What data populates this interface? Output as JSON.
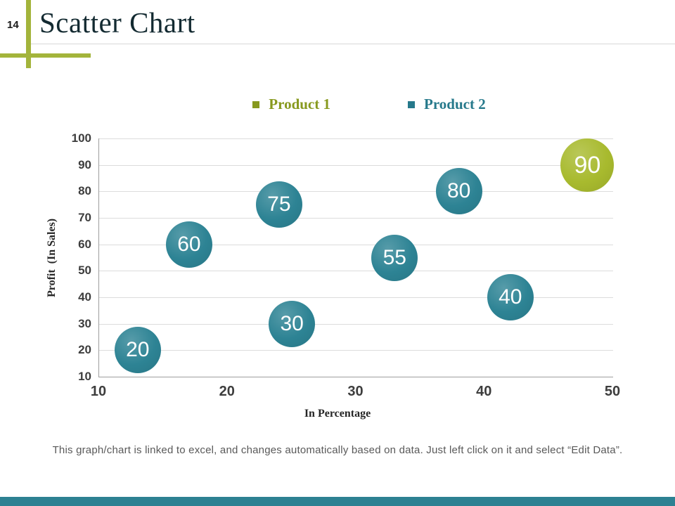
{
  "slide": {
    "page_number": "14",
    "title": "Scatter Chart",
    "footer": "This graph/chart is linked to excel, and changes automatically based on data. Just left click on it and select “Edit Data”."
  },
  "theme": {
    "olive": "#a3b43b",
    "teal": "#2d8192",
    "title_color": "#132a31",
    "footer_color": "#595959"
  },
  "legend": [
    {
      "label": "Product 1",
      "color": "#87991e"
    },
    {
      "label": "Product 2",
      "color": "#26798b"
    }
  ],
  "chart_data": {
    "type": "scatter",
    "title": "",
    "xlabel": "In Percentage",
    "ylabel": "Profit  (In Sales)",
    "xlim": [
      10,
      50
    ],
    "ylim": [
      10,
      100
    ],
    "x_ticks": [
      10,
      20,
      30,
      40,
      50
    ],
    "y_ticks": [
      100,
      90,
      80,
      70,
      60,
      50,
      40,
      30,
      20,
      10
    ],
    "grid": "horizontal",
    "legend_position": "top",
    "series": [
      {
        "name": "Product 1",
        "color": "#a8ba2e",
        "points": [
          {
            "x": 48,
            "y": 90,
            "label": "90",
            "radius": 38
          }
        ]
      },
      {
        "name": "Product 2",
        "color": "#2d8394",
        "points": [
          {
            "x": 13,
            "y": 20,
            "label": "20",
            "radius": 33
          },
          {
            "x": 17,
            "y": 60,
            "label": "60",
            "radius": 33
          },
          {
            "x": 24,
            "y": 75,
            "label": "75",
            "radius": 33
          },
          {
            "x": 25,
            "y": 30,
            "label": "30",
            "radius": 33
          },
          {
            "x": 33,
            "y": 55,
            "label": "55",
            "radius": 33
          },
          {
            "x": 38,
            "y": 80,
            "label": "80",
            "radius": 33
          },
          {
            "x": 42,
            "y": 40,
            "label": "40",
            "radius": 33
          }
        ]
      }
    ]
  }
}
